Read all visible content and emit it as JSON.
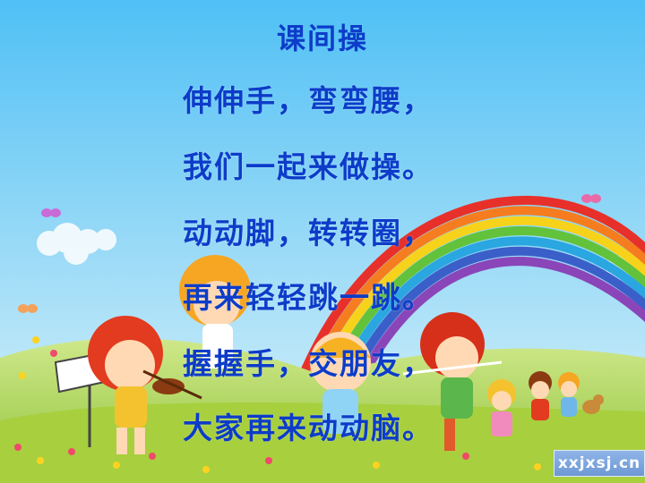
{
  "poem": {
    "title": "课间操",
    "lines": [
      "伸伸手，弯弯腰，",
      "我们一起来做操。",
      "动动脚，转转圈，",
      "再来轻轻跳一跳。",
      "握握手，交朋友，",
      "大家再来动动脑。"
    ]
  },
  "watermark": "xxjxsj.cn",
  "colors": {
    "text": "#0d3cc9",
    "sky_top": "#4fc0f5",
    "sky_bottom": "#dff4fb",
    "grass": "#b9d84a"
  }
}
